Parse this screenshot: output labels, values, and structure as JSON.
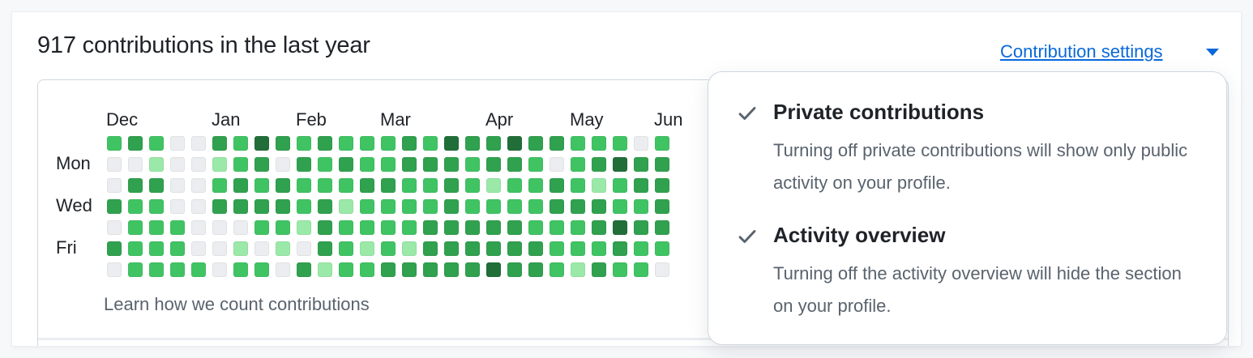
{
  "header": {
    "title": "917 contributions in the last year",
    "settings_label": "Contribution settings"
  },
  "graph": {
    "months": [
      "Dec",
      "Jan",
      "Feb",
      "Mar",
      "Apr",
      "May",
      "Jun"
    ],
    "days": [
      "Mon",
      "Wed",
      "Fri"
    ],
    "levels": [
      [
        2,
        3,
        2,
        0,
        0,
        3,
        2,
        4,
        3,
        2,
        3,
        2,
        2,
        2,
        3,
        2,
        4,
        3,
        3,
        4,
        3,
        3,
        2,
        2,
        2,
        0,
        2
      ],
      [
        0,
        0,
        1,
        0,
        0,
        1,
        2,
        3,
        0,
        3,
        2,
        3,
        2,
        2,
        3,
        3,
        3,
        2,
        3,
        3,
        2,
        0,
        2,
        3,
        4,
        3,
        3
      ],
      [
        0,
        3,
        3,
        0,
        0,
        2,
        3,
        2,
        3,
        2,
        2,
        2,
        3,
        3,
        2,
        2,
        3,
        2,
        1,
        2,
        2,
        3,
        2,
        1,
        2,
        3,
        3
      ],
      [
        3,
        2,
        2,
        0,
        0,
        3,
        3,
        3,
        3,
        2,
        3,
        1,
        2,
        2,
        2,
        2,
        3,
        2,
        2,
        2,
        2,
        3,
        3,
        3,
        2,
        2,
        3
      ],
      [
        0,
        2,
        2,
        2,
        0,
        0,
        0,
        2,
        2,
        1,
        3,
        2,
        2,
        2,
        2,
        3,
        3,
        3,
        3,
        3,
        2,
        2,
        2,
        3,
        4,
        3,
        3
      ],
      [
        3,
        2,
        2,
        2,
        0,
        0,
        1,
        0,
        1,
        0,
        3,
        2,
        1,
        2,
        1,
        3,
        3,
        3,
        3,
        3,
        3,
        2,
        2,
        2,
        3,
        2,
        2
      ],
      [
        0,
        2,
        2,
        2,
        2,
        0,
        2,
        2,
        0,
        3,
        1,
        2,
        2,
        3,
        3,
        3,
        3,
        3,
        4,
        3,
        3,
        2,
        1,
        3,
        2,
        2,
        0
      ]
    ],
    "palette": [
      "#ebedf0",
      "#9be9a8",
      "#40c463",
      "#30a14e",
      "#216e39"
    ],
    "learn_link": "Learn how we count contributions"
  },
  "dropdown": {
    "options": [
      {
        "title": "Private contributions",
        "description": "Turning off private contributions will show only public activity on your profile.",
        "checked": true
      },
      {
        "title": "Activity overview",
        "description": "Turning off the activity overview will hide the section on your profile.",
        "checked": true
      }
    ]
  },
  "colors": {
    "link": "#0969da",
    "text": "#1f2328",
    "muted": "#59636e"
  },
  "icons": {
    "caret": "triangle-down-icon",
    "check": "check-icon"
  }
}
